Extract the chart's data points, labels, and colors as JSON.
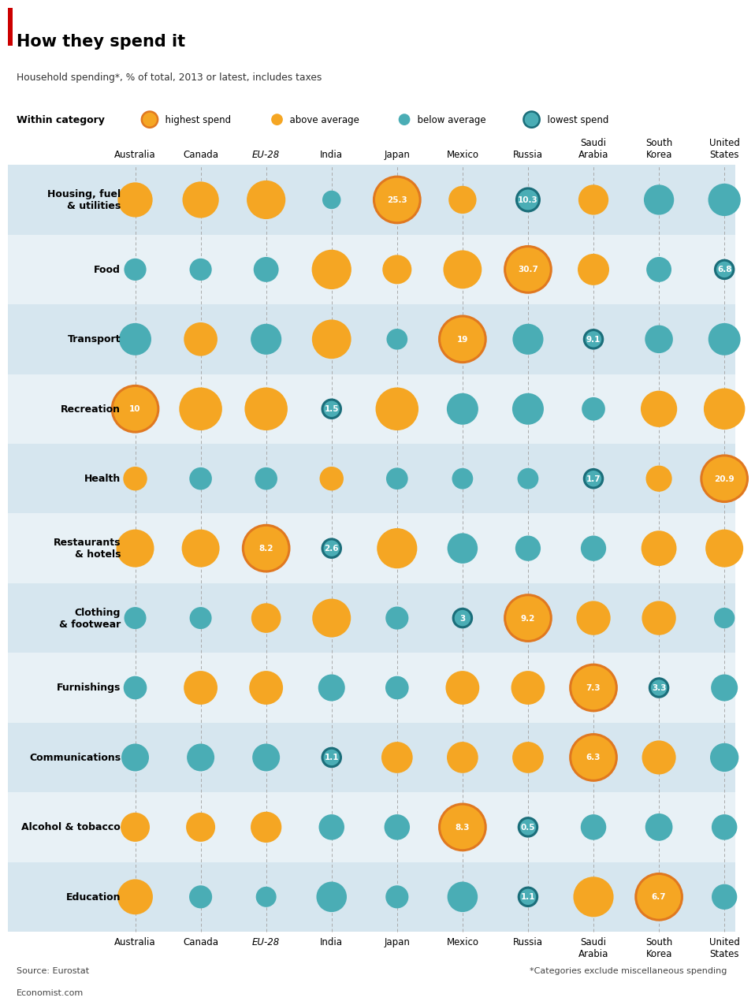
{
  "title": "How they spend it",
  "subtitle": "Household spending*, % of total, 2013 or latest, includes taxes",
  "countries_top": [
    "Australia",
    "Canada",
    "EU-28",
    "India",
    "Japan",
    "Mexico",
    "Russia",
    "Saudi\nArabia",
    "South\nKorea",
    "United\nStates"
  ],
  "categories": [
    "Housing, fuel\n& utilities",
    "Food",
    "Transport",
    "Recreation",
    "Health",
    "Restaurants\n& hotels",
    "Clothing\n& footwear",
    "Furnishings",
    "Communications",
    "Alcohol & tobacco",
    "Education"
  ],
  "source": "Source: Eurostat",
  "footnote": "*Categories exclude miscellaneous spending",
  "url": "Economist.com",
  "row_colors": [
    "#D6E6EF",
    "#E8F1F6"
  ],
  "orange": "#F5A623",
  "teal": "#4AADB5",
  "orange_outline": "#E07820",
  "teal_outline": "#1B6E7A",
  "data": [
    {
      "category": "Housing, fuel\n& utilities",
      "values": [
        {
          "country": "Australia",
          "value": 18.0,
          "type": "above_avg"
        },
        {
          "country": "Canada",
          "value": 19.0,
          "type": "above_avg"
        },
        {
          "country": "EU-28",
          "value": 20.5,
          "type": "above_avg"
        },
        {
          "country": "India",
          "value": 7.5,
          "type": "below_avg"
        },
        {
          "country": "Japan",
          "value": 25.3,
          "type": "highest",
          "label": "25.3"
        },
        {
          "country": "Mexico",
          "value": 13.5,
          "type": "above_avg"
        },
        {
          "country": "Russia",
          "value": 10.3,
          "type": "lowest",
          "label": "10.3"
        },
        {
          "country": "Saudi Arabia",
          "value": 15.0,
          "type": "above_avg"
        },
        {
          "country": "South Korea",
          "value": 15.0,
          "type": "below_avg"
        },
        {
          "country": "United States",
          "value": 16.5,
          "type": "below_avg"
        }
      ]
    },
    {
      "category": "Food",
      "values": [
        {
          "country": "Australia",
          "value": 10.0,
          "type": "below_avg"
        },
        {
          "country": "Canada",
          "value": 10.0,
          "type": "below_avg"
        },
        {
          "country": "EU-28",
          "value": 12.5,
          "type": "below_avg"
        },
        {
          "country": "India",
          "value": 25.0,
          "type": "above_avg"
        },
        {
          "country": "Japan",
          "value": 16.0,
          "type": "above_avg"
        },
        {
          "country": "Mexico",
          "value": 24.0,
          "type": "above_avg"
        },
        {
          "country": "Russia",
          "value": 30.7,
          "type": "highest",
          "label": "30.7"
        },
        {
          "country": "Saudi Arabia",
          "value": 18.0,
          "type": "above_avg"
        },
        {
          "country": "South Korea",
          "value": 12.5,
          "type": "below_avg"
        },
        {
          "country": "United States",
          "value": 6.8,
          "type": "lowest",
          "label": "6.8"
        }
      ]
    },
    {
      "category": "Transport",
      "values": [
        {
          "country": "Australia",
          "value": 14.0,
          "type": "below_avg"
        },
        {
          "country": "Canada",
          "value": 14.5,
          "type": "above_avg"
        },
        {
          "country": "EU-28",
          "value": 13.5,
          "type": "below_avg"
        },
        {
          "country": "India",
          "value": 16.5,
          "type": "above_avg"
        },
        {
          "country": "Japan",
          "value": 10.0,
          "type": "below_avg"
        },
        {
          "country": "Mexico",
          "value": 19.0,
          "type": "highest",
          "label": "19"
        },
        {
          "country": "Russia",
          "value": 13.5,
          "type": "below_avg"
        },
        {
          "country": "Saudi Arabia",
          "value": 9.1,
          "type": "lowest",
          "label": "9.1"
        },
        {
          "country": "South Korea",
          "value": 12.5,
          "type": "below_avg"
        },
        {
          "country": "United States",
          "value": 14.0,
          "type": "below_avg"
        }
      ]
    },
    {
      "category": "Recreation",
      "values": [
        {
          "country": "Australia",
          "value": 10.0,
          "type": "highest",
          "label": "10"
        },
        {
          "country": "Canada",
          "value": 9.0,
          "type": "above_avg"
        },
        {
          "country": "EU-28",
          "value": 9.0,
          "type": "above_avg"
        },
        {
          "country": "India",
          "value": 1.5,
          "type": "lowest",
          "label": "1.5"
        },
        {
          "country": "Japan",
          "value": 9.0,
          "type": "above_avg"
        },
        {
          "country": "Mexico",
          "value": 5.5,
          "type": "below_avg"
        },
        {
          "country": "Russia",
          "value": 5.5,
          "type": "below_avg"
        },
        {
          "country": "Saudi Arabia",
          "value": 3.0,
          "type": "below_avg"
        },
        {
          "country": "South Korea",
          "value": 7.0,
          "type": "above_avg"
        },
        {
          "country": "United States",
          "value": 8.5,
          "type": "above_avg"
        }
      ]
    },
    {
      "category": "Health",
      "values": [
        {
          "country": "Australia",
          "value": 5.5,
          "type": "above_avg"
        },
        {
          "country": "Canada",
          "value": 4.5,
          "type": "below_avg"
        },
        {
          "country": "EU-28",
          "value": 4.5,
          "type": "below_avg"
        },
        {
          "country": "India",
          "value": 5.5,
          "type": "above_avg"
        },
        {
          "country": "Japan",
          "value": 4.0,
          "type": "below_avg"
        },
        {
          "country": "Mexico",
          "value": 3.5,
          "type": "below_avg"
        },
        {
          "country": "Russia",
          "value": 3.5,
          "type": "below_avg"
        },
        {
          "country": "Saudi Arabia",
          "value": 1.7,
          "type": "lowest",
          "label": "1.7"
        },
        {
          "country": "South Korea",
          "value": 7.0,
          "type": "above_avg"
        },
        {
          "country": "United States",
          "value": 20.9,
          "type": "highest",
          "label": "20.9"
        }
      ]
    },
    {
      "category": "Restaurants\n& hotels",
      "values": [
        {
          "country": "Australia",
          "value": 6.5,
          "type": "above_avg"
        },
        {
          "country": "Canada",
          "value": 6.5,
          "type": "above_avg"
        },
        {
          "country": "EU-28",
          "value": 8.2,
          "type": "highest",
          "label": "8.2"
        },
        {
          "country": "India",
          "value": 2.6,
          "type": "lowest",
          "label": "2.6"
        },
        {
          "country": "Japan",
          "value": 7.0,
          "type": "above_avg"
        },
        {
          "country": "Mexico",
          "value": 5.0,
          "type": "below_avg"
        },
        {
          "country": "Russia",
          "value": 4.0,
          "type": "below_avg"
        },
        {
          "country": "Saudi Arabia",
          "value": 4.0,
          "type": "below_avg"
        },
        {
          "country": "South Korea",
          "value": 6.0,
          "type": "above_avg"
        },
        {
          "country": "United States",
          "value": 6.5,
          "type": "above_avg"
        }
      ]
    },
    {
      "category": "Clothing\n& footwear",
      "values": [
        {
          "country": "Australia",
          "value": 3.8,
          "type": "below_avg"
        },
        {
          "country": "Canada",
          "value": 3.8,
          "type": "below_avg"
        },
        {
          "country": "EU-28",
          "value": 5.5,
          "type": "above_avg"
        },
        {
          "country": "India",
          "value": 7.5,
          "type": "above_avg"
        },
        {
          "country": "Japan",
          "value": 4.0,
          "type": "below_avg"
        },
        {
          "country": "Mexico",
          "value": 3.0,
          "type": "lowest",
          "label": "3"
        },
        {
          "country": "Russia",
          "value": 9.2,
          "type": "highest",
          "label": "9.2"
        },
        {
          "country": "Saudi Arabia",
          "value": 6.5,
          "type": "above_avg"
        },
        {
          "country": "South Korea",
          "value": 6.5,
          "type": "above_avg"
        },
        {
          "country": "United States",
          "value": 3.5,
          "type": "below_avg"
        }
      ]
    },
    {
      "category": "Furnishings",
      "values": [
        {
          "country": "Australia",
          "value": 4.0,
          "type": "below_avg"
        },
        {
          "country": "Canada",
          "value": 5.5,
          "type": "above_avg"
        },
        {
          "country": "EU-28",
          "value": 5.5,
          "type": "above_avg"
        },
        {
          "country": "India",
          "value": 4.5,
          "type": "below_avg"
        },
        {
          "country": "Japan",
          "value": 4.0,
          "type": "below_avg"
        },
        {
          "country": "Mexico",
          "value": 5.5,
          "type": "above_avg"
        },
        {
          "country": "Russia",
          "value": 5.5,
          "type": "above_avg"
        },
        {
          "country": "Saudi Arabia",
          "value": 7.3,
          "type": "highest",
          "label": "7.3"
        },
        {
          "country": "South Korea",
          "value": 3.3,
          "type": "lowest",
          "label": "3.3"
        },
        {
          "country": "United States",
          "value": 4.5,
          "type": "below_avg"
        }
      ]
    },
    {
      "category": "Communications",
      "values": [
        {
          "country": "Australia",
          "value": 2.8,
          "type": "below_avg"
        },
        {
          "country": "Canada",
          "value": 2.8,
          "type": "below_avg"
        },
        {
          "country": "EU-28",
          "value": 2.8,
          "type": "below_avg"
        },
        {
          "country": "India",
          "value": 1.1,
          "type": "lowest",
          "label": "1.1"
        },
        {
          "country": "Japan",
          "value": 3.5,
          "type": "above_avg"
        },
        {
          "country": "Mexico",
          "value": 3.5,
          "type": "above_avg"
        },
        {
          "country": "Russia",
          "value": 3.5,
          "type": "above_avg"
        },
        {
          "country": "Saudi Arabia",
          "value": 6.3,
          "type": "highest",
          "label": "6.3"
        },
        {
          "country": "South Korea",
          "value": 4.0,
          "type": "above_avg"
        },
        {
          "country": "United States",
          "value": 3.0,
          "type": "below_avg"
        }
      ]
    },
    {
      "category": "Alcohol & tobacco",
      "values": [
        {
          "country": "Australia",
          "value": 3.5,
          "type": "above_avg"
        },
        {
          "country": "Canada",
          "value": 3.5,
          "type": "above_avg"
        },
        {
          "country": "EU-28",
          "value": 4.0,
          "type": "above_avg"
        },
        {
          "country": "India",
          "value": 2.5,
          "type": "below_avg"
        },
        {
          "country": "Japan",
          "value": 2.5,
          "type": "below_avg"
        },
        {
          "country": "Mexico",
          "value": 8.3,
          "type": "highest",
          "label": "8.3"
        },
        {
          "country": "Russia",
          "value": 0.5,
          "type": "lowest",
          "label": "0.5"
        },
        {
          "country": "Saudi Arabia",
          "value": 2.5,
          "type": "below_avg"
        },
        {
          "country": "South Korea",
          "value": 3.0,
          "type": "below_avg"
        },
        {
          "country": "United States",
          "value": 2.5,
          "type": "below_avg"
        }
      ]
    },
    {
      "category": "Education",
      "values": [
        {
          "country": "Australia",
          "value": 4.5,
          "type": "above_avg"
        },
        {
          "country": "Canada",
          "value": 2.0,
          "type": "below_avg"
        },
        {
          "country": "EU-28",
          "value": 1.5,
          "type": "below_avg"
        },
        {
          "country": "India",
          "value": 3.5,
          "type": "below_avg"
        },
        {
          "country": "Japan",
          "value": 2.0,
          "type": "below_avg"
        },
        {
          "country": "Mexico",
          "value": 3.5,
          "type": "below_avg"
        },
        {
          "country": "Russia",
          "value": 1.1,
          "type": "lowest",
          "label": "1.1"
        },
        {
          "country": "Saudi Arabia",
          "value": 5.5,
          "type": "above_avg"
        },
        {
          "country": "South Korea",
          "value": 6.7,
          "type": "highest",
          "label": "6.7"
        },
        {
          "country": "United States",
          "value": 2.5,
          "type": "below_avg"
        }
      ]
    }
  ]
}
